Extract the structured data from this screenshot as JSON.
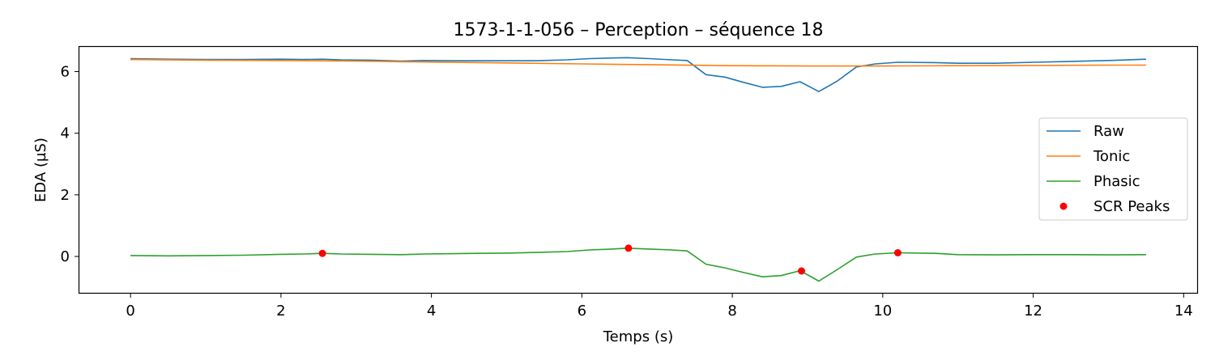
{
  "chart_data": {
    "type": "line",
    "title": "1573-1-1-056 – Perception – séquence 18",
    "xlabel": "Temps (s)",
    "ylabel": "EDA (µS)",
    "xlim": [
      -0.68,
      14.18
    ],
    "ylim": [
      -1.18,
      6.8
    ],
    "xticks": [
      0,
      2,
      4,
      6,
      8,
      10,
      12,
      14
    ],
    "yticks": [
      0,
      2,
      4,
      6
    ],
    "grid": false,
    "legend_position": "center-right",
    "series": [
      {
        "name": "Raw",
        "color": "#1f77b4",
        "x": [
          0,
          0.5,
          1,
          1.5,
          2,
          2.3,
          2.55,
          2.8,
          3.2,
          3.6,
          3.9,
          4.3,
          4.6,
          5.0,
          5.4,
          5.8,
          6.1,
          6.4,
          6.6,
          6.9,
          7.2,
          7.4,
          7.65,
          7.9,
          8.15,
          8.4,
          8.65,
          8.9,
          9.15,
          9.4,
          9.65,
          9.9,
          10.2,
          10.7,
          11.0,
          11.5,
          12.0,
          12.5,
          13.0,
          13.5
        ],
        "y": [
          6.42,
          6.4,
          6.39,
          6.39,
          6.4,
          6.39,
          6.4,
          6.38,
          6.37,
          6.34,
          6.36,
          6.35,
          6.35,
          6.35,
          6.35,
          6.38,
          6.42,
          6.44,
          6.45,
          6.42,
          6.38,
          6.36,
          5.9,
          5.82,
          5.65,
          5.49,
          5.52,
          5.67,
          5.35,
          5.7,
          6.15,
          6.25,
          6.3,
          6.29,
          6.27,
          6.27,
          6.3,
          6.33,
          6.36,
          6.4
        ]
      },
      {
        "name": "Tonic",
        "color": "#ff7f0e",
        "x": [
          0,
          1,
          2,
          3,
          4,
          5,
          6,
          7,
          8,
          9,
          10,
          11,
          12,
          13,
          13.5
        ],
        "y": [
          6.39,
          6.37,
          6.36,
          6.34,
          6.31,
          6.28,
          6.25,
          6.22,
          6.19,
          6.18,
          6.18,
          6.19,
          6.2,
          6.21,
          6.21
        ]
      },
      {
        "name": "Phasic",
        "color": "#2ca02c",
        "x": [
          0,
          0.5,
          1,
          1.5,
          2,
          2.3,
          2.55,
          2.8,
          3.2,
          3.6,
          3.9,
          4.3,
          4.6,
          5.0,
          5.4,
          5.8,
          6.1,
          6.4,
          6.6,
          6.9,
          7.2,
          7.4,
          7.65,
          7.9,
          8.15,
          8.4,
          8.65,
          8.9,
          9.15,
          9.4,
          9.65,
          9.9,
          10.2,
          10.7,
          11.0,
          11.5,
          12.0,
          12.5,
          13.0,
          13.5
        ],
        "y": [
          0.03,
          0.02,
          0.03,
          0.04,
          0.07,
          0.08,
          0.1,
          0.08,
          0.07,
          0.06,
          0.08,
          0.09,
          0.1,
          0.11,
          0.13,
          0.16,
          0.21,
          0.24,
          0.27,
          0.24,
          0.21,
          0.18,
          -0.25,
          -0.37,
          -0.52,
          -0.66,
          -0.62,
          -0.46,
          -0.8,
          -0.42,
          -0.02,
          0.08,
          0.12,
          0.1,
          0.06,
          0.05,
          0.06,
          0.06,
          0.05,
          0.06
        ]
      }
    ],
    "scatter": {
      "name": "SCR Peaks",
      "color": "#ff0000",
      "points": [
        {
          "x": 2.55,
          "y": 0.1
        },
        {
          "x": 6.62,
          "y": 0.27
        },
        {
          "x": 8.92,
          "y": -0.47
        },
        {
          "x": 10.2,
          "y": 0.12
        }
      ]
    }
  }
}
